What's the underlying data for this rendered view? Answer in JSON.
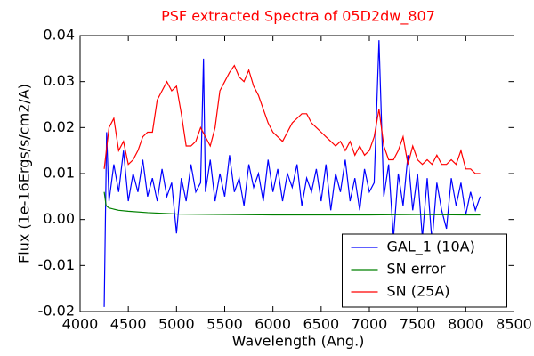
{
  "chart_data": {
    "type": "line",
    "title": "PSF extracted Spectra of 05D2dw_807",
    "title_color": "#ff0000",
    "xlabel": "Wavelength (Ang.)",
    "ylabel": "Flux (1e-16Ergs/s/cm2/A)",
    "xlim": [
      4000,
      8500
    ],
    "xticks": [
      4000,
      4500,
      5000,
      5500,
      6000,
      6500,
      7000,
      7500,
      8000,
      8500
    ],
    "ylim": [
      -0.02,
      0.04
    ],
    "yticks": [
      -0.02,
      -0.01,
      {
        "value": 0,
        "label": "0.00"
      },
      0.01,
      0.02,
      0.03,
      0.04
    ],
    "legend": "lower right",
    "grid": false,
    "series": [
      {
        "name": "GAL_1 (10A)",
        "color": "#0000ff",
        "x": [
          4250,
          4275,
          4300,
          4350,
          4400,
          4450,
          4500,
          4550,
          4600,
          4650,
          4700,
          4750,
          4800,
          4850,
          4900,
          4950,
          5000,
          5050,
          5100,
          5150,
          5200,
          5250,
          5280,
          5300,
          5350,
          5400,
          5450,
          5500,
          5550,
          5600,
          5650,
          5700,
          5750,
          5800,
          5850,
          5900,
          5950,
          6000,
          6050,
          6100,
          6150,
          6200,
          6250,
          6300,
          6350,
          6400,
          6450,
          6500,
          6550,
          6600,
          6650,
          6700,
          6750,
          6800,
          6850,
          6900,
          6950,
          7000,
          7050,
          7100,
          7150,
          7200,
          7250,
          7300,
          7350,
          7400,
          7450,
          7500,
          7550,
          7600,
          7650,
          7700,
          7750,
          7800,
          7850,
          7900,
          7950,
          8000,
          8050,
          8100,
          8150
        ],
        "values": [
          -0.019,
          0.019,
          0.004,
          0.012,
          0.006,
          0.015,
          0.004,
          0.01,
          0.006,
          0.013,
          0.005,
          0.009,
          0.004,
          0.011,
          0.005,
          0.008,
          -0.003,
          0.009,
          0.004,
          0.012,
          0.006,
          0.008,
          0.035,
          0.006,
          0.013,
          0.004,
          0.01,
          0.005,
          0.014,
          0.006,
          0.009,
          0.003,
          0.012,
          0.007,
          0.01,
          0.004,
          0.013,
          0.006,
          0.011,
          0.004,
          0.01,
          0.007,
          0.012,
          0.003,
          0.009,
          0.006,
          0.011,
          0.004,
          0.012,
          0.002,
          0.01,
          0.006,
          0.013,
          0.004,
          0.009,
          0.002,
          0.011,
          0.006,
          0.008,
          0.039,
          0.005,
          0.012,
          -0.004,
          0.01,
          0.003,
          0.014,
          0.002,
          0.01,
          -0.004,
          0.009,
          -0.005,
          0.008,
          0.002,
          -0.002,
          0.009,
          0.003,
          0.008,
          0.001,
          0.006,
          0.002,
          0.005
        ]
      },
      {
        "name": "SN error",
        "color": "#008000",
        "x": [
          4250,
          4270,
          4300,
          4400,
          4500,
          4700,
          5000,
          5500,
          6000,
          6500,
          7000,
          7500,
          8000,
          8150
        ],
        "values": [
          0.006,
          0.003,
          0.0025,
          0.002,
          0.0018,
          0.0015,
          0.0012,
          0.0011,
          0.001,
          0.001,
          0.001,
          0.0011,
          0.001,
          0.001
        ]
      },
      {
        "name": "SN (25A)",
        "color": "#ff0000",
        "x": [
          4250,
          4300,
          4350,
          4400,
          4450,
          4500,
          4550,
          4600,
          4650,
          4700,
          4750,
          4800,
          4850,
          4900,
          4950,
          5000,
          5050,
          5100,
          5150,
          5200,
          5250,
          5300,
          5350,
          5400,
          5450,
          5500,
          5550,
          5600,
          5650,
          5700,
          5750,
          5800,
          5850,
          5900,
          5950,
          6000,
          6050,
          6100,
          6150,
          6200,
          6250,
          6300,
          6350,
          6400,
          6450,
          6500,
          6550,
          6600,
          6650,
          6700,
          6750,
          6800,
          6850,
          6900,
          6950,
          7000,
          7050,
          7100,
          7150,
          7200,
          7250,
          7300,
          7350,
          7400,
          7450,
          7500,
          7550,
          7600,
          7650,
          7700,
          7750,
          7800,
          7850,
          7900,
          7950,
          8000,
          8050,
          8100,
          8150
        ],
        "values": [
          0.011,
          0.02,
          0.022,
          0.015,
          0.017,
          0.012,
          0.013,
          0.015,
          0.018,
          0.019,
          0.019,
          0.026,
          0.028,
          0.03,
          0.028,
          0.029,
          0.023,
          0.016,
          0.016,
          0.017,
          0.02,
          0.018,
          0.016,
          0.02,
          0.028,
          0.03,
          0.032,
          0.0335,
          0.031,
          0.03,
          0.0325,
          0.029,
          0.027,
          0.024,
          0.021,
          0.019,
          0.018,
          0.017,
          0.019,
          0.021,
          0.022,
          0.023,
          0.023,
          0.021,
          0.02,
          0.019,
          0.018,
          0.017,
          0.016,
          0.017,
          0.015,
          0.017,
          0.014,
          0.016,
          0.014,
          0.015,
          0.018,
          0.024,
          0.016,
          0.013,
          0.013,
          0.015,
          0.018,
          0.012,
          0.016,
          0.013,
          0.012,
          0.013,
          0.012,
          0.014,
          0.012,
          0.012,
          0.013,
          0.012,
          0.015,
          0.011,
          0.011,
          0.01,
          0.01
        ]
      }
    ]
  }
}
